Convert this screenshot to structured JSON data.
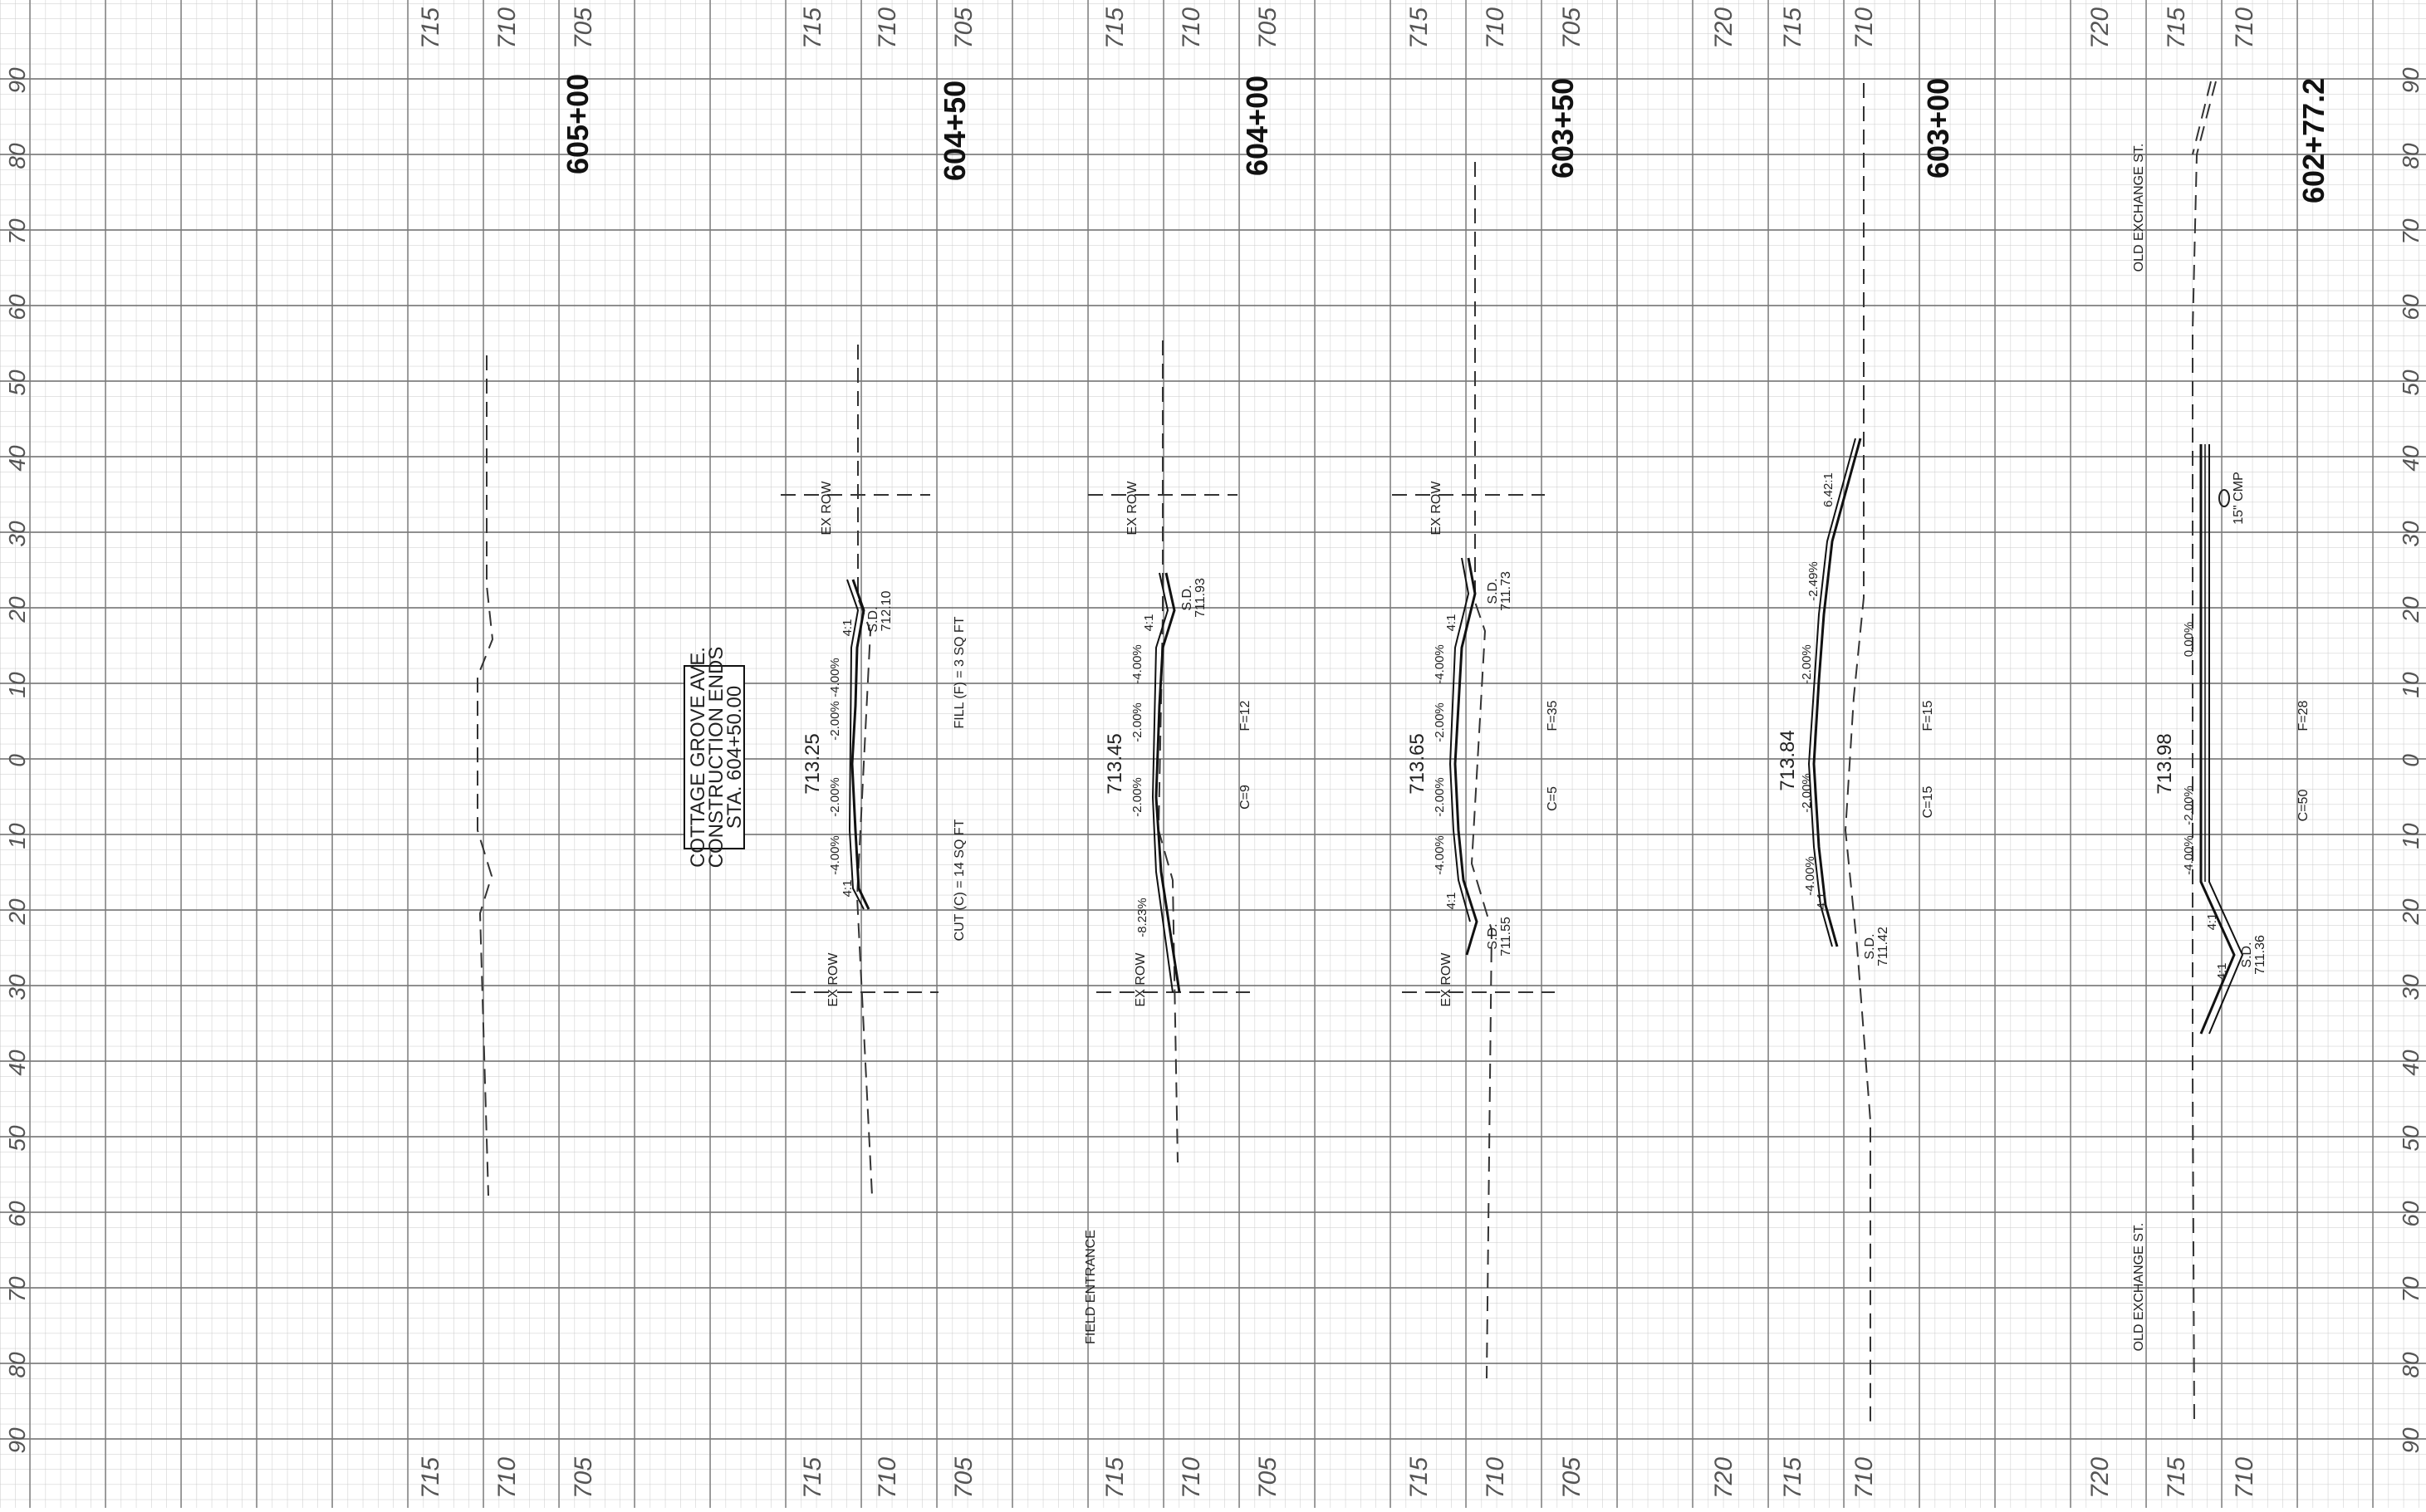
{
  "grid": {
    "offset_labels_left": [
      "90",
      "80",
      "70",
      "60",
      "50",
      "40",
      "30",
      "20",
      "10",
      "0",
      "10",
      "20",
      "30",
      "40",
      "50",
      "60",
      "70",
      "80",
      "90"
    ],
    "offset_labels_right": [
      "90",
      "80",
      "70",
      "60",
      "50",
      "40",
      "30",
      "20",
      "10",
      "0",
      "10",
      "20",
      "30",
      "40",
      "50",
      "60",
      "70",
      "80",
      "90"
    ]
  },
  "elevation_labels_top": [
    "715",
    "710",
    "705",
    "715",
    "710",
    "705",
    "715",
    "710",
    "705",
    "715",
    "710",
    "705",
    "720",
    "715",
    "710",
    "720",
    "715",
    "710"
  ],
  "elevation_labels_bottom": [
    "715",
    "710",
    "705",
    "715",
    "710",
    "705",
    "715",
    "710",
    "705",
    "715",
    "710",
    "705",
    "720",
    "715",
    "710",
    "720",
    "715",
    "710"
  ],
  "stations": [
    {
      "label": "605+00"
    },
    {
      "label": "604+50"
    },
    {
      "label": "604+00"
    },
    {
      "label": "603+50"
    },
    {
      "label": "603+00"
    },
    {
      "label": "602+77.2"
    }
  ],
  "note_box": {
    "line1": "COTTAGE GROVE AVE.",
    "line2": "CONSTRUCTION ENDS",
    "line3": "STA. 604+50.00"
  },
  "sections": {
    "s60450": {
      "cl_elev": "713.25",
      "grades": [
        "4:1",
        "-4.00%",
        "-2.00%",
        "-2.00%",
        "-4.00%",
        "4:1"
      ],
      "sd_top": "S.D.",
      "sd_top_elev": "712.10",
      "ex_row": "EX ROW",
      "fill": "FILL (F) = 3 SQ FT",
      "cut": "CUT (C) = 14 SQ FT"
    },
    "s60400": {
      "cl_elev": "713.45",
      "grades": [
        "4:1",
        "-4.00%",
        "-2.00%",
        "-2.00%",
        "-8.23%"
      ],
      "sd_top": "S.D.",
      "sd_top_elev": "711.93",
      "ex_row": "EX ROW",
      "fill": "F=12",
      "cut": "C=9",
      "field_entrance": "FIELD ENTRANCE"
    },
    "s60350": {
      "cl_elev": "713.65",
      "grades": [
        "4:1",
        "-4.00%",
        "-2.00%",
        "-2.00%",
        "-4.00%",
        "4:1"
      ],
      "sd_top": "S.D.",
      "sd_top_elev": "711.73",
      "sd_bot": "S.D.",
      "sd_bot_elev": "711.55",
      "ex_row": "EX ROW",
      "fill": "F=35",
      "cut": "C=5"
    },
    "s60300": {
      "cl_elev": "713.84",
      "grades": [
        "6.42:1",
        "-2.49%",
        "-2.00%",
        "-2.00%",
        "-4.00%",
        "4:1"
      ],
      "sd_bot": "S.D.",
      "sd_bot_elev": "711.42",
      "fill": "F=15",
      "cut": "C=15"
    },
    "s60277": {
      "cl_elev": "713.98",
      "grades": [
        "0.00%",
        "-2.00%",
        "-4.00%",
        "4:1",
        "4:1"
      ],
      "culvert": "15\" CMP",
      "sd_bot": "S.D.",
      "sd_bot_elev": "711.36",
      "fill": "F=28",
      "cut": "C=50",
      "street_top": "OLD EXCHANGE ST.",
      "street_bot": "OLD EXCHANGE ST."
    }
  }
}
